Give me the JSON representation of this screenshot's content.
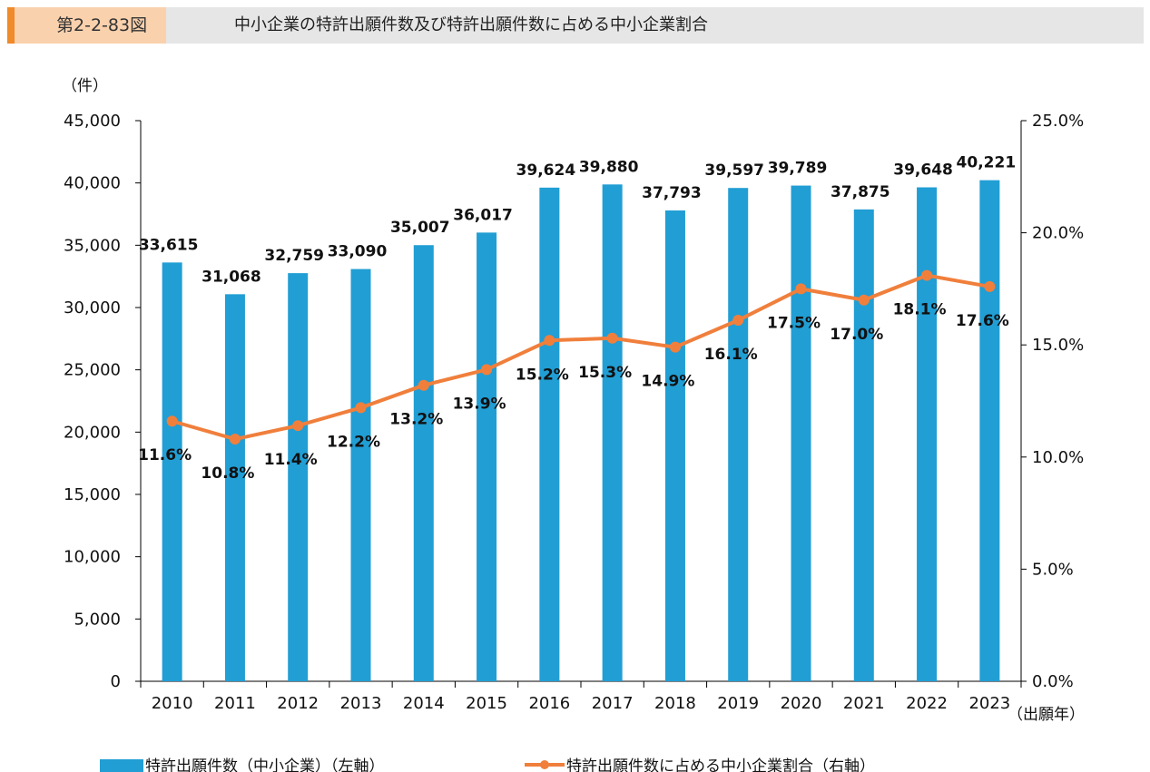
{
  "header": {
    "figure_number": "第2-2-83図",
    "title": "中小企業の特許出願件数及び特許出願件数に占める中小企業割合"
  },
  "chart_data": {
    "type": "bar+line",
    "categories": [
      "2010",
      "2011",
      "2012",
      "2013",
      "2014",
      "2015",
      "2016",
      "2017",
      "2018",
      "2019",
      "2020",
      "2021",
      "2022",
      "2023"
    ],
    "series": [
      {
        "name": "特許出願件数（中小企業）（左軸）",
        "type": "bar",
        "axis": "left",
        "color": "#219ed4",
        "values": [
          33615,
          31068,
          32759,
          33090,
          35007,
          36017,
          39624,
          39880,
          37793,
          39597,
          39789,
          37875,
          39648,
          40221
        ],
        "labels": [
          "33,615",
          "31,068",
          "32,759",
          "33,090",
          "35,007",
          "36,017",
          "39,624",
          "39,880",
          "37,793",
          "39,597",
          "39,789",
          "37,875",
          "39,648",
          "40,221"
        ]
      },
      {
        "name": "特許出願件数に占める中小企業割合（右軸）",
        "type": "line",
        "axis": "right",
        "color": "#f07f3c",
        "values": [
          11.6,
          10.8,
          11.4,
          12.2,
          13.2,
          13.9,
          15.2,
          15.3,
          14.9,
          16.1,
          17.5,
          17.0,
          18.1,
          17.6
        ],
        "labels": [
          "11.6%",
          "10.8%",
          "11.4%",
          "12.2%",
          "13.2%",
          "13.9%",
          "15.2%",
          "15.3%",
          "14.9%",
          "16.1%",
          "17.5%",
          "17.0%",
          "18.1%",
          "17.6%"
        ]
      }
    ],
    "y_left": {
      "unit_label": "（件）",
      "range": [
        0,
        45000
      ],
      "ticks": [
        "0",
        "5,000",
        "10,000",
        "15,000",
        "20,000",
        "25,000",
        "30,000",
        "35,000",
        "40,000",
        "45,000"
      ]
    },
    "y_right": {
      "range": [
        0,
        25
      ],
      "ticks": [
        "0.0%",
        "5.0%",
        "10.0%",
        "15.0%",
        "20.0%",
        "25.0%"
      ]
    },
    "xlabel": "（出願年）",
    "legend_position": "bottom",
    "grid": false
  }
}
